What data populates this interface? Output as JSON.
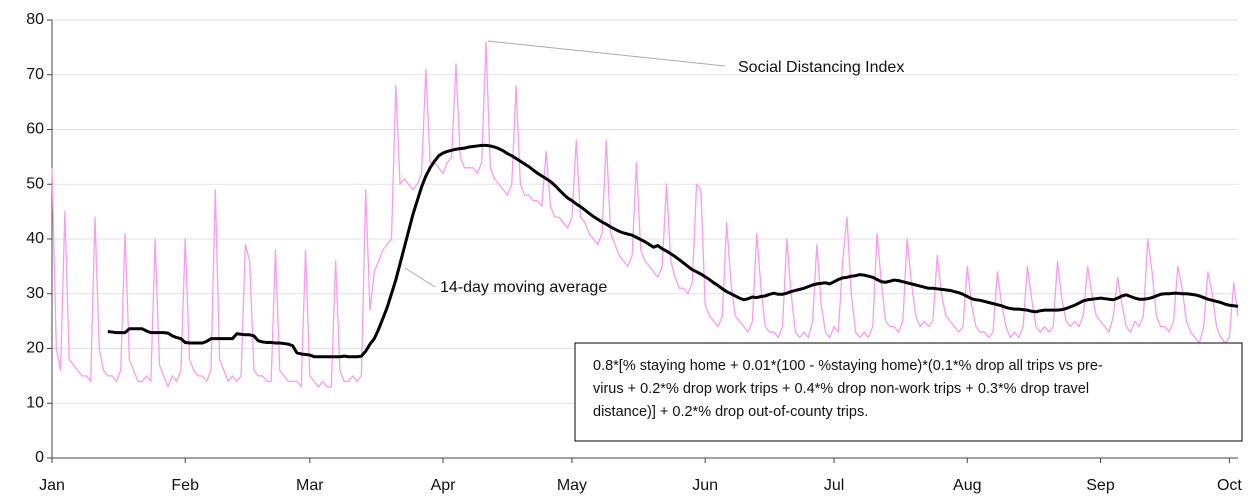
{
  "chart_data": {
    "type": "line",
    "x": [
      0,
      1,
      2,
      3,
      4,
      5,
      6,
      7,
      8,
      9,
      10,
      11,
      12,
      13,
      14,
      15,
      16,
      17,
      18,
      19,
      20,
      21,
      22,
      23,
      24,
      25,
      26,
      27,
      28,
      29,
      30,
      31,
      32,
      33,
      34,
      35,
      36,
      37,
      38,
      39,
      40,
      41,
      42,
      43,
      44,
      45,
      46,
      47,
      48,
      49,
      50,
      51,
      52,
      53,
      54,
      55,
      56,
      57,
      58,
      59,
      60,
      61,
      62,
      63,
      64,
      65,
      66,
      67,
      68,
      69,
      70,
      71,
      72,
      73,
      74,
      75,
      76,
      77,
      78,
      79,
      80,
      81,
      82,
      83,
      84,
      85,
      86,
      87,
      88,
      89,
      90,
      91,
      92,
      93,
      94,
      95,
      96,
      97,
      98,
      99,
      100,
      101,
      102,
      103,
      104,
      105,
      106,
      107,
      108,
      109,
      110,
      111,
      112,
      113,
      114,
      115,
      116,
      117,
      118,
      119,
      120,
      121,
      122,
      123,
      124,
      125,
      126,
      127,
      128,
      129,
      130,
      131,
      132,
      133,
      134,
      135,
      136,
      137,
      138,
      139,
      140,
      141,
      142,
      143,
      144,
      145,
      146,
      147,
      148,
      149,
      150,
      151,
      152,
      153,
      154,
      155,
      156,
      157,
      158,
      159,
      160,
      161,
      162,
      163,
      164,
      165,
      166,
      167,
      168,
      169,
      170,
      171,
      172,
      173,
      174,
      175,
      176,
      177,
      178,
      179,
      180,
      181,
      182,
      183,
      184,
      185,
      186,
      187,
      188,
      189,
      190,
      191,
      192,
      193,
      194,
      195,
      196,
      197,
      198,
      199,
      200,
      201,
      202,
      203,
      204,
      205,
      206,
      207,
      208,
      209,
      210,
      211,
      212,
      213,
      214,
      215,
      216,
      217,
      218,
      219,
      220,
      221,
      222,
      223,
      224,
      225,
      226,
      227,
      228,
      229,
      230,
      231,
      232,
      233,
      234,
      235,
      236,
      237,
      238,
      239,
      240,
      241,
      242,
      243,
      244,
      245,
      246,
      247,
      248,
      249,
      250,
      251,
      252,
      253,
      254,
      255,
      256,
      257,
      258,
      259,
      260,
      261,
      262,
      263,
      264,
      265,
      266,
      267,
      268,
      269,
      270,
      271,
      272,
      273,
      274,
      275,
      276
    ],
    "series": [
      {
        "name": "Social Distancing Index",
        "color": "#f99cef",
        "values": [
          53,
          20,
          16,
          45,
          18,
          17,
          16,
          15,
          15,
          14,
          44,
          20,
          16,
          15,
          15,
          14,
          16,
          41,
          18,
          16,
          14,
          14,
          15,
          14,
          40,
          17,
          15,
          13,
          15,
          14,
          16,
          40,
          18,
          16,
          15,
          15,
          14,
          16,
          49,
          18,
          16,
          14,
          15,
          14,
          15,
          39,
          36,
          16,
          15,
          15,
          14,
          14,
          38,
          16,
          15,
          14,
          14,
          14,
          13,
          38,
          15,
          14,
          13,
          14,
          13,
          13,
          36,
          16,
          14,
          14,
          15,
          14,
          15,
          49,
          27,
          34,
          36,
          38,
          39,
          40,
          68,
          50,
          51,
          50,
          49,
          50,
          52,
          71,
          54,
          54,
          53,
          52,
          54,
          55,
          72,
          55,
          53,
          53,
          53,
          52,
          54,
          76,
          53,
          51,
          50,
          49,
          48,
          50,
          68,
          50,
          48,
          48,
          47,
          47,
          46,
          56,
          46,
          44,
          44,
          43,
          42,
          44,
          58,
          44,
          43,
          41,
          40,
          39,
          41,
          58,
          41,
          39,
          37,
          36,
          35,
          37,
          54,
          38,
          36,
          35,
          34,
          33,
          35,
          50,
          36,
          33,
          31,
          31,
          30,
          32,
          50,
          49,
          28,
          26,
          25,
          24,
          26,
          43,
          32,
          26,
          25,
          24,
          23,
          25,
          41,
          31,
          24,
          23,
          23,
          22,
          24,
          40,
          30,
          23,
          22,
          23,
          22,
          25,
          39,
          28,
          23,
          22,
          24,
          23,
          36,
          44,
          30,
          23,
          22,
          23,
          22,
          24,
          41,
          32,
          25,
          24,
          24,
          23,
          25,
          40,
          32,
          26,
          24,
          25,
          24,
          25,
          37,
          30,
          26,
          25,
          24,
          23,
          24,
          35,
          28,
          24,
          23,
          23,
          22,
          23,
          34,
          28,
          24,
          22,
          23,
          22,
          24,
          35,
          29,
          24,
          23,
          24,
          23,
          24,
          36,
          29,
          25,
          24,
          25,
          24,
          26,
          35,
          30,
          26,
          25,
          24,
          23,
          26,
          33,
          28,
          24,
          23,
          25,
          24,
          26,
          40,
          34,
          26,
          24,
          24,
          23,
          25,
          35,
          31,
          25,
          23,
          22,
          21,
          24,
          34,
          30,
          24,
          22,
          21,
          22,
          32,
          26
        ]
      },
      {
        "name": "14-day moving average",
        "color": "#000000",
        "values": [
          null,
          null,
          null,
          null,
          null,
          null,
          null,
          null,
          null,
          null,
          null,
          null,
          null,
          23.1,
          23.0,
          22.9,
          22.9,
          22.9,
          23.6,
          23.6,
          23.6,
          23.6,
          23.2,
          22.9,
          22.9,
          22.9,
          22.9,
          22.8,
          22.3,
          22.0,
          21.8,
          21.1,
          21.0,
          21.0,
          21.0,
          21.0,
          21.3,
          21.8,
          21.8,
          21.8,
          21.8,
          21.8,
          21.8,
          22.7,
          22.6,
          22.5,
          22.5,
          22.3,
          21.4,
          21.2,
          21.1,
          21.1,
          21.0,
          21.0,
          20.9,
          20.8,
          20.5,
          19.2,
          19.0,
          18.9,
          18.8,
          18.5,
          18.5,
          18.5,
          18.5,
          18.5,
          18.5,
          18.5,
          18.6,
          18.5,
          18.5,
          18.5,
          18.6,
          19.5,
          20.8,
          21.8,
          23.5,
          25.5,
          27.5,
          30.0,
          32.5,
          35.5,
          38.5,
          41.5,
          44.5,
          47.0,
          49.5,
          51.5,
          53.0,
          54.2,
          55.2,
          55.7,
          56.0,
          56.2,
          56.4,
          56.5,
          56.6,
          56.8,
          56.9,
          57.0,
          57.1,
          57.1,
          57.0,
          56.8,
          56.5,
          56.1,
          55.6,
          55.2,
          54.7,
          54.2,
          53.7,
          53.2,
          52.6,
          52.0,
          51.5,
          51.0,
          50.5,
          49.8,
          49.0,
          48.2,
          47.5,
          47.0,
          46.4,
          45.9,
          45.3,
          44.7,
          44.1,
          43.6,
          43.1,
          42.7,
          42.2,
          41.8,
          41.4,
          41.1,
          40.9,
          40.7,
          40.3,
          39.9,
          39.5,
          39.0,
          38.5,
          38.8,
          38.2,
          37.8,
          37.3,
          36.8,
          36.2,
          35.6,
          35.0,
          34.4,
          34.0,
          33.6,
          33.1,
          32.6,
          32.0,
          31.5,
          30.9,
          30.4,
          30.0,
          29.6,
          29.2,
          28.9,
          29.1,
          29.4,
          29.3,
          29.5,
          29.6,
          29.9,
          30.1,
          29.9,
          29.9,
          30.1,
          30.4,
          30.6,
          30.8,
          31.0,
          31.3,
          31.6,
          31.8,
          31.9,
          32.0,
          31.8,
          32.2,
          32.6,
          32.9,
          33.0,
          33.2,
          33.3,
          33.5,
          33.4,
          33.2,
          33.0,
          32.6,
          32.2,
          32.1,
          32.3,
          32.5,
          32.4,
          32.2,
          32.0,
          31.8,
          31.6,
          31.4,
          31.2,
          31.0,
          31.0,
          30.9,
          30.8,
          30.7,
          30.6,
          30.4,
          30.2,
          29.9,
          29.5,
          29.1,
          28.9,
          28.8,
          28.6,
          28.4,
          28.2,
          28.0,
          27.8,
          27.5,
          27.3,
          27.2,
          27.2,
          27.1,
          27.0,
          26.8,
          26.7,
          26.9,
          27.0,
          27.0,
          27.0,
          27.0,
          27.1,
          27.3,
          27.6,
          27.9,
          28.3,
          28.7,
          28.9,
          29.0,
          29.1,
          29.2,
          29.1,
          29.0,
          28.9,
          29.2,
          29.6,
          29.8,
          29.5,
          29.2,
          29.0,
          29.0,
          29.1,
          29.3,
          29.6,
          29.9,
          30.0,
          30.0,
          30.1,
          30.1,
          30.0,
          30.0,
          29.9,
          29.8,
          29.6,
          29.3,
          29.0,
          28.8,
          28.6,
          28.4,
          28.1,
          27.9,
          27.8,
          27.7
        ]
      }
    ],
    "xlim": [
      0,
      276
    ],
    "xticks": [
      {
        "value": 0,
        "label": "Jan"
      },
      {
        "value": 31,
        "label": "Feb"
      },
      {
        "value": 60,
        "label": "Mar"
      },
      {
        "value": 91,
        "label": "Apr"
      },
      {
        "value": 121,
        "label": "May"
      },
      {
        "value": 152,
        "label": "Jun"
      },
      {
        "value": 182,
        "label": "Jul"
      },
      {
        "value": 213,
        "label": "Aug"
      },
      {
        "value": 244,
        "label": "Sep"
      },
      {
        "value": 274,
        "label": "Oct"
      }
    ],
    "ylim": [
      0,
      80
    ],
    "yticks": [
      0,
      10,
      20,
      30,
      40,
      50,
      60,
      70,
      80
    ],
    "grid": true,
    "note_lines": [
      "0.8*[% staying home + 0.01*(100 - %staying home)*(0.1*% drop all trips vs pre-",
      "virus + 0.2*% drop work trips + 0.4*% drop non-work trips + 0.3*% drop travel",
      "distance)] + 0.2*% drop out-of-county trips."
    ]
  }
}
